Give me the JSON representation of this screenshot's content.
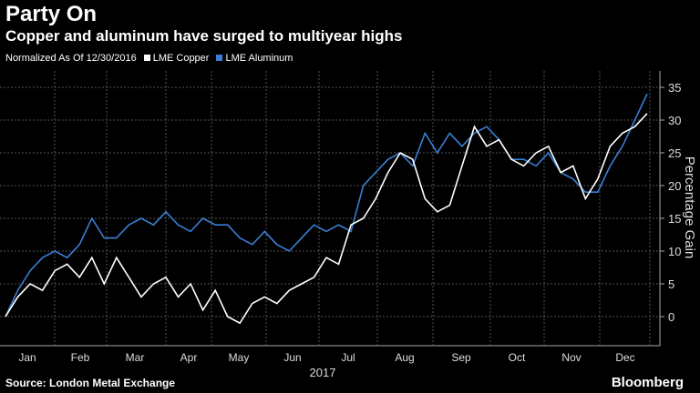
{
  "header": {
    "title": "Party On",
    "subtitle": "Copper and aluminum have surged to multiyear highs"
  },
  "legend": {
    "note": "Normalized As Of 12/30/2016",
    "items": [
      {
        "label": "LME Copper",
        "color": "#ffffff"
      },
      {
        "label": "LME Aluminum",
        "color": "#3a7fd5"
      }
    ]
  },
  "footer": {
    "source": "Source: London Metal Exchange",
    "brand": "Bloomberg"
  },
  "chart_data": {
    "type": "line",
    "title": "Party On",
    "ylabel": "Percentage Gain",
    "xlabel": "2017",
    "ylim": [
      -5,
      37
    ],
    "yticks": [
      0,
      5,
      10,
      15,
      20,
      25,
      30,
      35
    ],
    "month_labels": [
      "Jan",
      "Feb",
      "Mar",
      "Apr",
      "May",
      "Jun",
      "Jul",
      "Aug",
      "Sep",
      "Oct",
      "Nov",
      "Dec"
    ],
    "x_unit": "week of 2017",
    "x": [
      0,
      1,
      2,
      3,
      4,
      5,
      6,
      7,
      8,
      9,
      10,
      11,
      12,
      13,
      14,
      15,
      16,
      17,
      18,
      19,
      20,
      21,
      22,
      23,
      24,
      25,
      26,
      27,
      28,
      29,
      30,
      31,
      32,
      33,
      34,
      35,
      36,
      37,
      38,
      39,
      40,
      41,
      42,
      43,
      44,
      45,
      46,
      47,
      48,
      49,
      50,
      51,
      52
    ],
    "series": [
      {
        "name": "LME Copper",
        "color": "#ffffff",
        "values": [
          0,
          3,
          5,
          4,
          7,
          8,
          6,
          9,
          5,
          9,
          6,
          3,
          5,
          6,
          3,
          5,
          1,
          4,
          0,
          -1,
          2,
          3,
          2,
          4,
          5,
          6,
          9,
          8,
          14,
          15,
          18,
          22,
          25,
          24,
          18,
          16,
          17,
          23,
          29,
          26,
          27,
          24,
          23,
          25,
          26,
          22,
          23,
          18,
          21,
          26,
          28,
          29,
          31
        ]
      },
      {
        "name": "LME Aluminum",
        "color": "#3a7fd5",
        "values": [
          0,
          4,
          7,
          9,
          10,
          9,
          11,
          15,
          12,
          12,
          14,
          15,
          14,
          16,
          14,
          13,
          15,
          14,
          14,
          12,
          11,
          13,
          11,
          10,
          12,
          14,
          13,
          14,
          13,
          20,
          22,
          24,
          25,
          23,
          28,
          25,
          28,
          26,
          28,
          29,
          27,
          24,
          24,
          23,
          25,
          22,
          21,
          19,
          19,
          23,
          26,
          30,
          34
        ]
      }
    ]
  }
}
